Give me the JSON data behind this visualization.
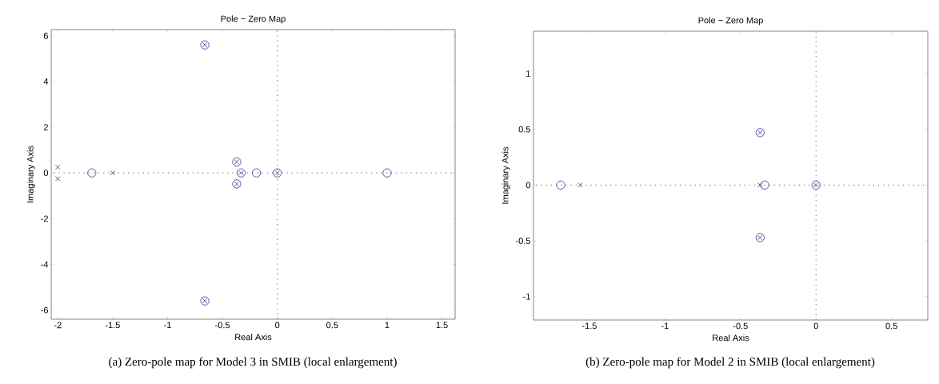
{
  "chart_data": [
    {
      "type": "scatter",
      "title": "Pole − Zero Map",
      "xlabel": "Real Axis",
      "ylabel": "Imaginary Axis",
      "annotations": [
        "(a)  Zero-pole map for Model 3 in SMIB (local enlargement)"
      ],
      "xlim": [
        -2.06,
        1.62
      ],
      "ylim": [
        -6.4,
        6.27
      ],
      "xticks": [
        -2,
        -1.5,
        -1,
        -0.5,
        0,
        0.5,
        1,
        1.5
      ],
      "yticks": [
        -6,
        -4,
        -2,
        0,
        2,
        4,
        6
      ],
      "grid": false,
      "ref_lines": [
        {
          "axis": "x",
          "value": 0,
          "color": "#808080",
          "line_style": "dotted"
        },
        {
          "axis": "y",
          "value": 0,
          "color": "#808080",
          "line_style": "dotted"
        }
      ],
      "series": [
        {
          "color": "#333399",
          "marker": "cross",
          "x": [
            -2,
            -2,
            -1.5,
            -0.66,
            -0.66,
            -0.37,
            -0.37,
            -0.33,
            0
          ],
          "values": [
            0.25,
            -0.25,
            0,
            5.6,
            -5.6,
            0.48,
            -0.48,
            0,
            0
          ]
        },
        {
          "color": "#333399",
          "marker": "circle",
          "x": [
            -1.69,
            -0.66,
            -0.66,
            -0.37,
            -0.37,
            -0.33,
            -0.19,
            0,
            1
          ],
          "values": [
            0,
            5.6,
            -5.6,
            0.48,
            -0.48,
            0,
            0,
            0,
            0
          ]
        }
      ]
    },
    {
      "type": "scatter",
      "title": "Pole − Zero Map",
      "xlabel": "Real Axis",
      "ylabel": "Imaginary Axis",
      "annotations": [
        "(b)  Zero-pole map for Model 2 in SMIB (local enlargement)"
      ],
      "xlim": [
        -1.87,
        0.74
      ],
      "ylim": [
        -1.21,
        1.38
      ],
      "xticks": [
        -1.5,
        -1,
        -0.5,
        0,
        0.5
      ],
      "yticks": [
        -1,
        -0.5,
        0,
        0.5,
        1
      ],
      "grid": false,
      "ref_lines": [
        {
          "axis": "x",
          "value": 0,
          "color": "#808080",
          "line_style": "dotted"
        },
        {
          "axis": "y",
          "value": 0,
          "color": "#808080",
          "line_style": "dotted"
        }
      ],
      "series": [
        {
          "color": "#333399",
          "marker": "cross",
          "x": [
            -1.56,
            -0.37,
            -0.37,
            -0.37,
            0
          ],
          "values": [
            0,
            0.47,
            -0.47,
            0,
            0
          ]
        },
        {
          "color": "#333399",
          "marker": "circle",
          "x": [
            -1.69,
            -0.37,
            -0.37,
            -0.34,
            0
          ],
          "values": [
            0,
            0.47,
            -0.47,
            0,
            0
          ]
        }
      ]
    }
  ]
}
